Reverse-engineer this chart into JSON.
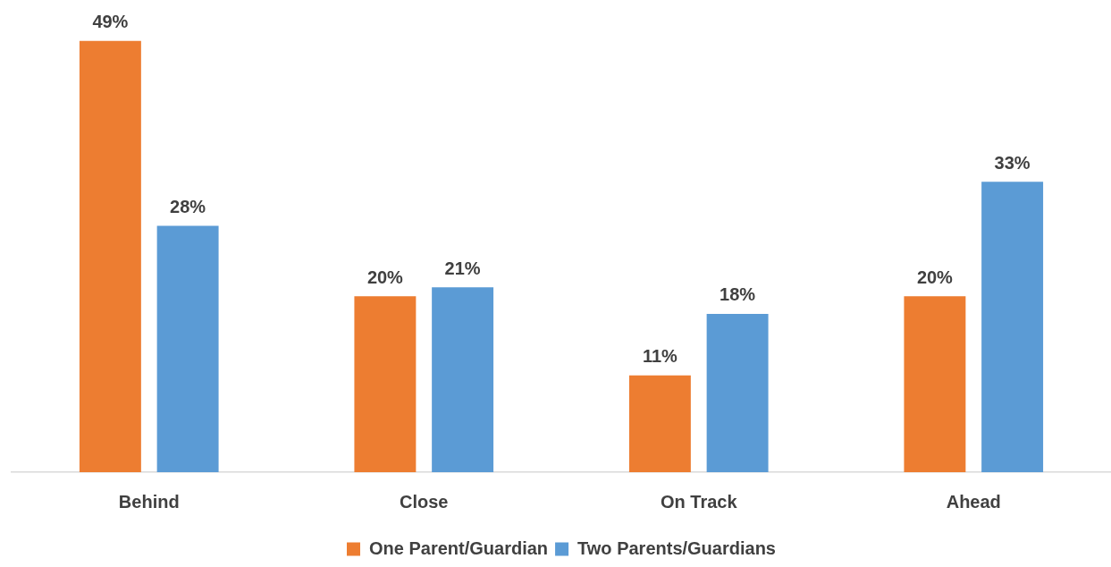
{
  "chart_data": {
    "type": "bar",
    "categories": [
      "Behind",
      "Close",
      "On Track",
      "Ahead"
    ],
    "series": [
      {
        "name": "One Parent/Guardian",
        "color": "#ed7d31",
        "values": [
          49,
          20,
          11,
          20
        ],
        "value_labels": [
          "49%",
          "20%",
          "11%",
          "20%"
        ]
      },
      {
        "name": "Two Parents/Guardians",
        "color": "#5b9bd5",
        "values": [
          28,
          21,
          18,
          33
        ],
        "value_labels": [
          "28%",
          "21%",
          "18%",
          "33%"
        ]
      }
    ],
    "legend": "bottom",
    "tick_labels": "x"
  }
}
